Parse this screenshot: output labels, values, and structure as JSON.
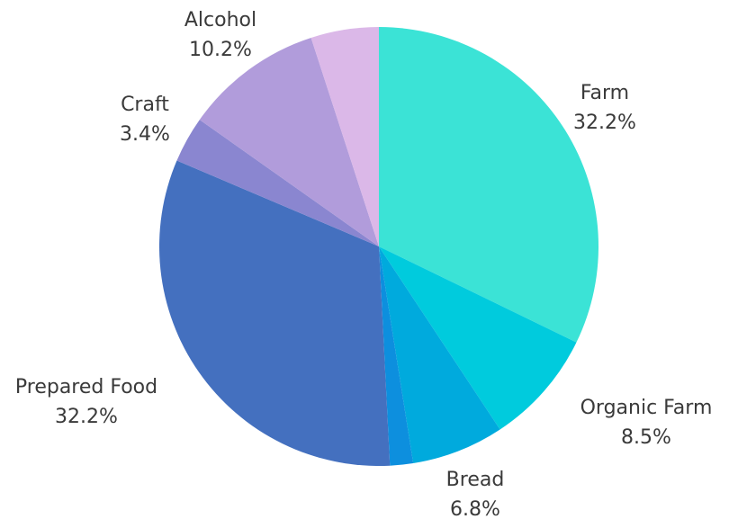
{
  "chart_data": {
    "type": "pie",
    "title": "",
    "slices": [
      {
        "label": "Farm",
        "percent_label": "32.2%",
        "value": 32.2,
        "color": "#3BE3D6",
        "show_label": true
      },
      {
        "label": "Organic Farm",
        "percent_label": "8.5%",
        "value": 8.5,
        "color": "#00CBDD",
        "show_label": true
      },
      {
        "label": "Bread",
        "percent_label": "6.8%",
        "value": 6.8,
        "color": "#00AADD",
        "show_label": true
      },
      {
        "label": "",
        "percent_label": "",
        "value": 1.7,
        "color": "#0D8FDE",
        "show_label": false
      },
      {
        "label": "Prepared Food",
        "percent_label": "32.2%",
        "value": 32.2,
        "color": "#4470BF",
        "show_label": true
      },
      {
        "label": "Craft",
        "percent_label": "3.4%",
        "value": 3.4,
        "color": "#8A86D0",
        "show_label": true
      },
      {
        "label": "Alcohol",
        "percent_label": "10.2%",
        "value": 10.2,
        "color": "#B19CDB",
        "show_label": true
      },
      {
        "label": "",
        "percent_label": "",
        "value": 5.0,
        "color": "#DBB8E8",
        "show_label": false
      }
    ],
    "start_angle": "12 o'clock",
    "direction": "clockwise",
    "legend": "none"
  }
}
